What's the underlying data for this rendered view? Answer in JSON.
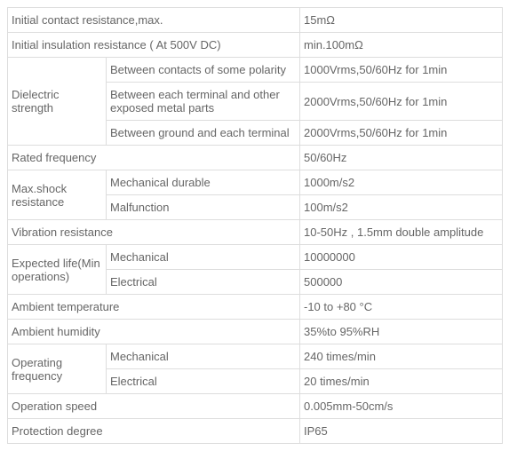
{
  "rows": [
    {
      "c1": "Initial contact resistance,max.",
      "c1span": 2,
      "c3": "15mΩ"
    },
    {
      "c1": "Initial insulation resistance ( At 500V DC)",
      "c1span": 2,
      "c3": "min.100mΩ"
    },
    {
      "c1": "Dielectric strength",
      "c1rowspan": 3,
      "c2": "Between contacts of some polarity",
      "c3": "1000Vrms,50/60Hz for 1min"
    },
    {
      "c2": "Between each terminal and other exposed metal parts",
      "c3": "2000Vrms,50/60Hz for 1min"
    },
    {
      "c2": "Between ground and each terminal",
      "c3": "2000Vrms,50/60Hz for 1min"
    },
    {
      "c1": "Rated frequency",
      "c1span": 2,
      "c3": "50/60Hz"
    },
    {
      "c1": "Max.shock resistance",
      "c1rowspan": 2,
      "c2": "Mechanical durable",
      "c3": "1000m/s2"
    },
    {
      "c2": "Malfunction",
      "c3": "100m/s2"
    },
    {
      "c1": "Vibration resistance",
      "c1span": 2,
      "c3": "10-50Hz , 1.5mm double amplitude"
    },
    {
      "c1": "Expected life(Min operations)",
      "c1rowspan": 2,
      "c2": "Mechanical",
      "c3": "10000000"
    },
    {
      "c2": "Electrical",
      "c3": "500000"
    },
    {
      "c1": "Ambient temperature",
      "c1span": 2,
      "c3": "-10 to +80 °C"
    },
    {
      "c1": "Ambient humidity",
      "c1span": 2,
      "c3": " 35%to 95%RH"
    },
    {
      "c1": "Operating frequency",
      "c1rowspan": 2,
      "c2": "Mechanical",
      "c3": "240 times/min"
    },
    {
      "c2": "Electrical",
      "c3": "20 times/min"
    },
    {
      "c1": "Operation speed",
      "c1span": 2,
      "c3": "         0.005mm-50cm/s"
    },
    {
      "c1": "Protection degree",
      "c1span": 2,
      "c3": "IP65"
    }
  ]
}
